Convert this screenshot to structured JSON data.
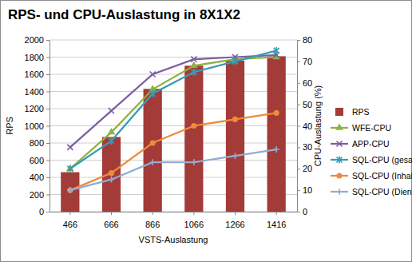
{
  "chart_data": {
    "type": "bar",
    "title": "RPS- und CPU-Auslastung in 8X1X2",
    "x_label": "VSTS-Auslastung",
    "y_label": "RPS",
    "y2_label": "CPU-Auslastung (%)",
    "categories": [
      "466",
      "666",
      "866",
      "1066",
      "1266",
      "1416"
    ],
    "ylim": [
      0,
      2000
    ],
    "yticks": [
      0,
      200,
      400,
      600,
      800,
      1000,
      1200,
      1400,
      1600,
      1800,
      2000
    ],
    "y2lim": [
      0,
      80
    ],
    "y2ticks": [
      0,
      10,
      20,
      30,
      40,
      50,
      60,
      70,
      80
    ],
    "grid": true,
    "legend": "right",
    "series": [
      {
        "name": "RPS",
        "type": "bar",
        "color": "#a33b38",
        "values": [
          460,
          870,
          1430,
          1700,
          1760,
          1810
        ]
      },
      {
        "name": "WFE-CPU",
        "type": "line",
        "axis": "y2",
        "color": "#8db33e",
        "marker": "triangle",
        "values": [
          20,
          37,
          57,
          68,
          71,
          72
        ]
      },
      {
        "name": "APP-CPU",
        "type": "line",
        "axis": "y2",
        "color": "#7d5fa0",
        "marker": "x",
        "values": [
          30,
          47,
          64,
          71,
          72,
          73
        ]
      },
      {
        "name": "SQL-CPU (gesamt)",
        "type": "line",
        "axis": "y2",
        "color": "#3a9bb5",
        "marker": "asterisk",
        "values": [
          20,
          33,
          55,
          65,
          70,
          75
        ]
      },
      {
        "name": "SQL-CPU (Inhalte)",
        "type": "line",
        "axis": "y2",
        "color": "#f08a3a",
        "marker": "circle",
        "values": [
          10,
          18,
          32,
          40,
          43,
          46
        ]
      },
      {
        "name": "SQL-CPU (Dienste)",
        "type": "line",
        "axis": "y2",
        "color": "#93acd2",
        "marker": "plus",
        "values": [
          10,
          15,
          23,
          23,
          26,
          29
        ]
      }
    ]
  }
}
